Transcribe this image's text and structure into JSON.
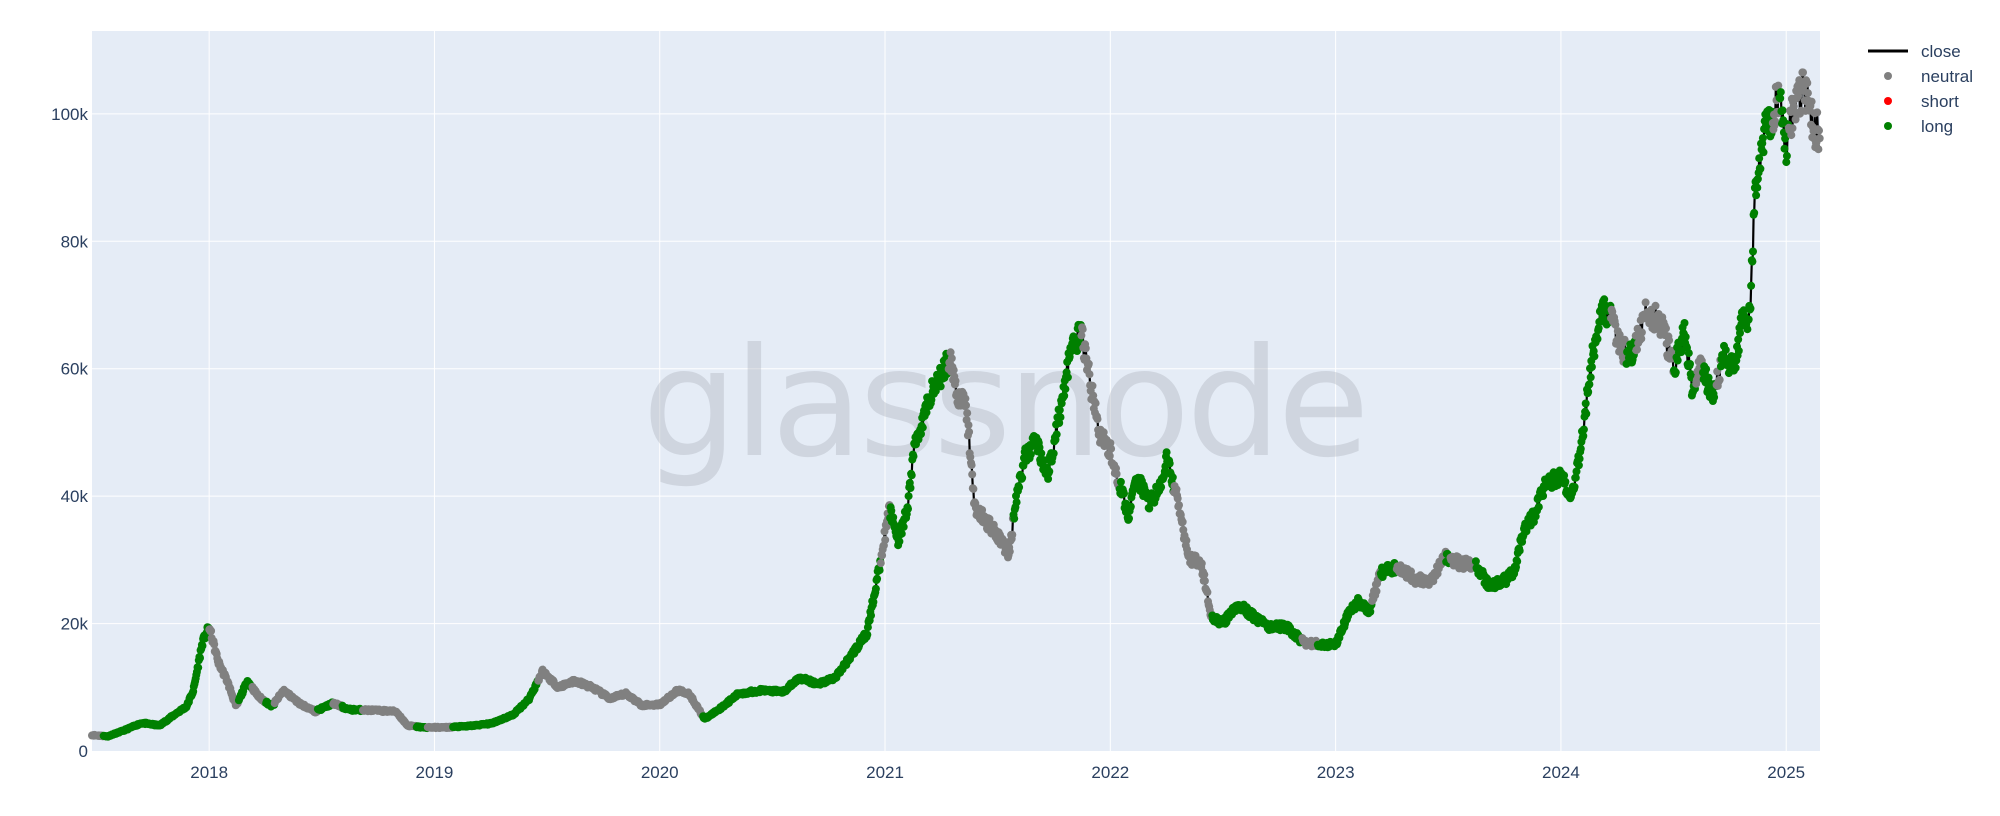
{
  "watermark": "glassnode",
  "chart_data": {
    "type": "scatter",
    "plot_background": "#e5ecf6",
    "grid": true,
    "legend_position": "top-right",
    "x_ticks": [
      "2018",
      "2019",
      "2020",
      "2021",
      "2022",
      "2023",
      "2024",
      "2025"
    ],
    "x_range": [
      2017.48,
      2025.15
    ],
    "y_ticks": [
      {
        "value": 0,
        "label": "0"
      },
      {
        "value": 20000,
        "label": "20k"
      },
      {
        "value": 40000,
        "label": "40k"
      },
      {
        "value": 60000,
        "label": "60k"
      },
      {
        "value": 80000,
        "label": "80k"
      },
      {
        "value": 100000,
        "label": "100k"
      }
    ],
    "y_range": [
      0,
      113000
    ],
    "series": [
      {
        "name": "close",
        "mode": "line",
        "color": "#000000"
      },
      {
        "name": "neutral",
        "mode": "markers",
        "color": "#808080"
      },
      {
        "name": "short",
        "mode": "markers",
        "color": "#ff0000"
      },
      {
        "name": "long",
        "mode": "markers",
        "color": "#008000"
      }
    ],
    "close_keypoints": [
      [
        2017.48,
        2500
      ],
      [
        2017.55,
        2300
      ],
      [
        2017.62,
        3200
      ],
      [
        2017.7,
        4400
      ],
      [
        2017.78,
        4000
      ],
      [
        2017.85,
        5800
      ],
      [
        2017.9,
        7000
      ],
      [
        2017.93,
        9500
      ],
      [
        2017.97,
        17000
      ],
      [
        2018.0,
        19500
      ],
      [
        2018.04,
        14000
      ],
      [
        2018.08,
        11000
      ],
      [
        2018.12,
        7000
      ],
      [
        2018.17,
        11000
      ],
      [
        2018.22,
        8500
      ],
      [
        2018.28,
        7000
      ],
      [
        2018.33,
        9500
      ],
      [
        2018.4,
        7500
      ],
      [
        2018.47,
        6200
      ],
      [
        2018.55,
        7500
      ],
      [
        2018.62,
        6500
      ],
      [
        2018.72,
        6400
      ],
      [
        2018.83,
        6200
      ],
      [
        2018.88,
        4000
      ],
      [
        2018.95,
        3700
      ],
      [
        2019.05,
        3700
      ],
      [
        2019.15,
        3900
      ],
      [
        2019.25,
        4300
      ],
      [
        2019.35,
        5700
      ],
      [
        2019.42,
        8200
      ],
      [
        2019.48,
        12500
      ],
      [
        2019.55,
        10000
      ],
      [
        2019.62,
        11000
      ],
      [
        2019.7,
        10000
      ],
      [
        2019.78,
        8200
      ],
      [
        2019.85,
        9000
      ],
      [
        2019.92,
        7200
      ],
      [
        2020.0,
        7300
      ],
      [
        2020.08,
        9500
      ],
      [
        2020.13,
        9000
      ],
      [
        2020.2,
        5000
      ],
      [
        2020.28,
        7000
      ],
      [
        2020.35,
        9000
      ],
      [
        2020.45,
        9500
      ],
      [
        2020.55,
        9300
      ],
      [
        2020.62,
        11500
      ],
      [
        2020.7,
        10500
      ],
      [
        2020.78,
        11500
      ],
      [
        2020.85,
        15000
      ],
      [
        2020.92,
        18500
      ],
      [
        2020.97,
        28000
      ],
      [
        2021.02,
        38000
      ],
      [
        2021.06,
        33000
      ],
      [
        2021.1,
        38000
      ],
      [
        2021.13,
        48000
      ],
      [
        2021.17,
        52000
      ],
      [
        2021.2,
        56000
      ],
      [
        2021.25,
        59000
      ],
      [
        2021.29,
        62000
      ],
      [
        2021.32,
        56000
      ],
      [
        2021.36,
        54000
      ],
      [
        2021.4,
        38000
      ],
      [
        2021.45,
        36000
      ],
      [
        2021.5,
        34000
      ],
      [
        2021.55,
        31000
      ],
      [
        2021.58,
        39000
      ],
      [
        2021.62,
        46000
      ],
      [
        2021.67,
        49000
      ],
      [
        2021.72,
        43000
      ],
      [
        2021.77,
        52000
      ],
      [
        2021.82,
        62000
      ],
      [
        2021.87,
        66000
      ],
      [
        2021.91,
        58000
      ],
      [
        2021.95,
        50000
      ],
      [
        2022.0,
        47000
      ],
      [
        2022.04,
        42000
      ],
      [
        2022.08,
        37000
      ],
      [
        2022.12,
        43000
      ],
      [
        2022.17,
        39000
      ],
      [
        2022.22,
        41000
      ],
      [
        2022.25,
        46000
      ],
      [
        2022.3,
        39000
      ],
      [
        2022.35,
        30000
      ],
      [
        2022.4,
        30000
      ],
      [
        2022.45,
        21000
      ],
      [
        2022.5,
        20000
      ],
      [
        2022.57,
        23000
      ],
      [
        2022.62,
        21500
      ],
      [
        2022.7,
        19500
      ],
      [
        2022.78,
        19500
      ],
      [
        2022.86,
        17000
      ],
      [
        2022.92,
        16800
      ],
      [
        2023.0,
        16700
      ],
      [
        2023.05,
        21000
      ],
      [
        2023.1,
        23500
      ],
      [
        2023.15,
        22000
      ],
      [
        2023.2,
        28000
      ],
      [
        2023.28,
        29000
      ],
      [
        2023.35,
        27000
      ],
      [
        2023.42,
        26500
      ],
      [
        2023.48,
        30500
      ],
      [
        2023.55,
        29500
      ],
      [
        2023.62,
        29200
      ],
      [
        2023.68,
        26000
      ],
      [
        2023.74,
        26500
      ],
      [
        2023.79,
        28000
      ],
      [
        2023.83,
        34000
      ],
      [
        2023.88,
        37000
      ],
      [
        2023.93,
        42000
      ],
      [
        2024.0,
        43000
      ],
      [
        2024.05,
        40000
      ],
      [
        2024.09,
        48000
      ],
      [
        2024.14,
        62000
      ],
      [
        2024.18,
        70000
      ],
      [
        2024.22,
        68000
      ],
      [
        2024.27,
        63000
      ],
      [
        2024.32,
        62000
      ],
      [
        2024.38,
        69000
      ],
      [
        2024.45,
        67000
      ],
      [
        2024.5,
        60000
      ],
      [
        2024.55,
        66000
      ],
      [
        2024.58,
        57000
      ],
      [
        2024.62,
        60000
      ],
      [
        2024.68,
        56000
      ],
      [
        2024.72,
        62000
      ],
      [
        2024.77,
        60000
      ],
      [
        2024.8,
        67000
      ],
      [
        2024.84,
        68000
      ],
      [
        2024.86,
        88000
      ],
      [
        2024.9,
        97000
      ],
      [
        2024.94,
        100000
      ],
      [
        2024.97,
        104000
      ],
      [
        2025.0,
        95000
      ],
      [
        2025.04,
        102000
      ],
      [
        2025.08,
        104000
      ],
      [
        2025.12,
        98000
      ],
      [
        2025.15,
        97000
      ]
    ],
    "long_intervals": [
      [
        2017.53,
        2018.0
      ],
      [
        2018.13,
        2018.19
      ],
      [
        2018.25,
        2018.29
      ],
      [
        2018.48,
        2018.55
      ],
      [
        2018.59,
        2018.68
      ],
      [
        2018.92,
        2018.97
      ],
      [
        2019.08,
        2019.46
      ],
      [
        2020.19,
        2020.98
      ],
      [
        2021.02,
        2021.28
      ],
      [
        2021.57,
        2021.87
      ],
      [
        2022.04,
        2022.28
      ],
      [
        2022.45,
        2022.85
      ],
      [
        2022.92,
        2023.16
      ],
      [
        2023.2,
        2023.27
      ],
      [
        2023.49,
        2023.51
      ],
      [
        2023.62,
        2024.22
      ],
      [
        2024.29,
        2024.33
      ],
      [
        2024.5,
        2024.6
      ],
      [
        2024.63,
        2024.69
      ],
      [
        2024.71,
        2024.94
      ],
      [
        2024.97,
        2025.01
      ]
    ]
  }
}
